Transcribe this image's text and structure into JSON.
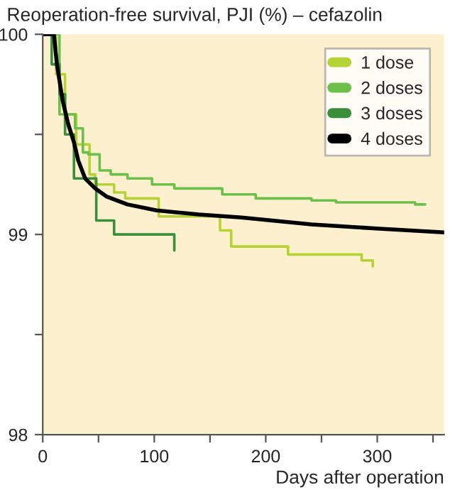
{
  "chart_data": {
    "type": "step",
    "title": "Reoperation-free survival, PJI (%) – cefazolin",
    "xlabel": "Days after operation",
    "xlim": [
      0,
      360
    ],
    "ylim": [
      98,
      100
    ],
    "xticks": [
      0,
      {
        "value": 50,
        "label": null
      },
      100,
      {
        "value": 150,
        "label": null
      },
      200,
      {
        "value": 250,
        "label": null
      },
      300,
      {
        "value": 350,
        "label": null
      }
    ],
    "yticks": [
      98,
      {
        "value": 98.5,
        "label": null
      },
      99,
      {
        "value": 99.5,
        "label": null
      },
      100
    ],
    "grid": false,
    "legend": "top right",
    "marker": "none",
    "line_style": "solid",
    "series": [
      {
        "name": "1 dose",
        "color": "#b5d334",
        "x": [
          0,
          12,
          20,
          30,
          42,
          47,
          64,
          74,
          104,
          159,
          169,
          220,
          286,
          296
        ],
        "values": [
          100,
          99.8,
          99.6,
          99.45,
          99.3,
          99.25,
          99.21,
          99.18,
          99.09,
          99.02,
          98.94,
          98.9,
          98.87,
          98.84
        ]
      },
      {
        "name": "2 doses",
        "color": "#6cc04a",
        "x": [
          0,
          15,
          29,
          36,
          41,
          51,
          61,
          76,
          98,
          118,
          161,
          191,
          241,
          263,
          334,
          343
        ],
        "values": [
          100,
          99.6,
          99.53,
          99.41,
          99.4,
          99.32,
          99.3,
          99.28,
          99.25,
          99.23,
          99.2,
          99.18,
          99.17,
          99.16,
          99.15,
          99.15
        ]
      },
      {
        "name": "3 doses",
        "color": "#3a8f3a",
        "x": [
          0,
          8,
          15,
          20,
          28,
          48,
          64,
          118
        ],
        "values": [
          100,
          99.85,
          99.7,
          99.5,
          99.28,
          99.07,
          99.0,
          98.92
        ]
      },
      {
        "name": "4 doses",
        "color": "#000000",
        "type": "line",
        "x": [
          0,
          10,
          12.7,
          17.8,
          22.9,
          28,
          31.8,
          38,
          47,
          57,
          76,
          102,
          140,
          178,
          241,
          299,
          360
        ],
        "values": [
          100,
          100,
          99.85,
          99.67,
          99.55,
          99.46,
          99.37,
          99.28,
          99.23,
          99.19,
          99.15,
          99.12,
          99.1,
          99.085,
          99.05,
          99.03,
          99.01
        ]
      }
    ]
  }
}
